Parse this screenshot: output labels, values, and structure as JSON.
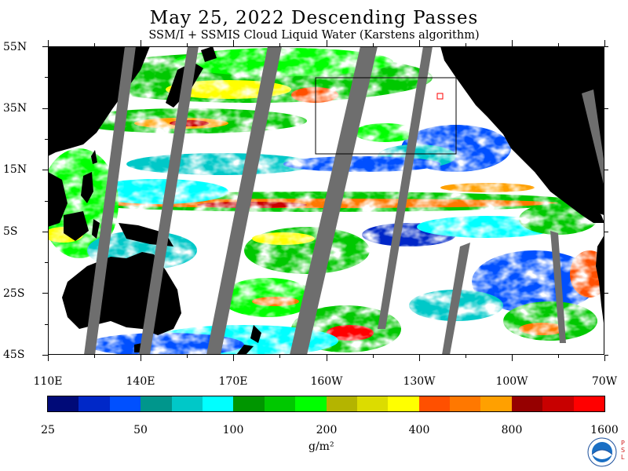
{
  "title": "May 25, 2022  Descending Passes",
  "subtitle": "SSM/I + SSMIS Cloud Liquid Water (Karstens algorithm)",
  "lat_labels": [
    "55N",
    "35N",
    "15N",
    "5S",
    "25S",
    "45S"
  ],
  "lon_labels": [
    "110E",
    "140E",
    "170E",
    "160W",
    "130W",
    "100W",
    "70W"
  ],
  "colorbar": {
    "colors": [
      "#000a78",
      "#0028c8",
      "#0050ff",
      "#00968c",
      "#00c8c8",
      "#00ffff",
      "#009600",
      "#00c800",
      "#00ff00",
      "#b4b400",
      "#dcdc00",
      "#ffff00",
      "#ff5000",
      "#ff7800",
      "#ffa000",
      "#960000",
      "#c80000",
      "#ff0000"
    ],
    "labels": [
      "25",
      "50",
      "100",
      "200",
      "400",
      "800",
      "1600"
    ],
    "unit": "g/m²"
  },
  "colors": {
    "land": "#000000",
    "no_data_swath": "#6e6e6e",
    "clear": "#ffffff",
    "box_outline": "#000000"
  },
  "logo": {
    "icon": "noaa-logo-icon",
    "side_text": "PSL"
  }
}
